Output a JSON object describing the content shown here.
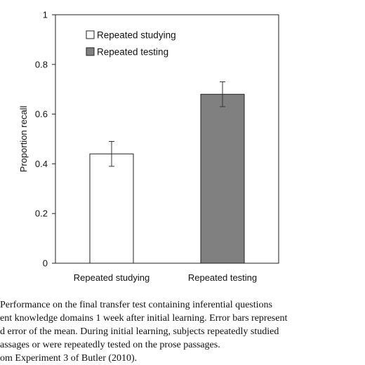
{
  "chart_data": {
    "type": "bar",
    "categories": [
      "Repeated studying",
      "Repeated testing"
    ],
    "values": [
      0.44,
      0.68
    ],
    "error": [
      0.05,
      0.05
    ],
    "ylabel": "Proportion recall",
    "ylim": [
      0,
      1
    ],
    "yticks": [
      "0",
      "0.2",
      "0.4",
      "0.6",
      "0.8",
      "1"
    ],
    "ytick_values": [
      0,
      0.2,
      0.4,
      0.6,
      0.8,
      1
    ],
    "grid": false,
    "legend_position": "top-left",
    "legend": [
      {
        "label": "Repeated studying",
        "color": "#ffffff"
      },
      {
        "label": "Repeated testing",
        "color": "#808080"
      }
    ],
    "bar_colors": [
      "#ffffff",
      "#808080"
    ]
  },
  "caption": {
    "lines": [
      "Performance on the final transfer test containing inferential questions",
      "ent knowledge domains 1 week after initial learning. Error bars represent",
      "d error of the mean. During initial learning, subjects repeatedly studied",
      "assages or were repeatedly tested on the prose passages.",
      "om Experiment 3 of Butler (2010)."
    ]
  }
}
